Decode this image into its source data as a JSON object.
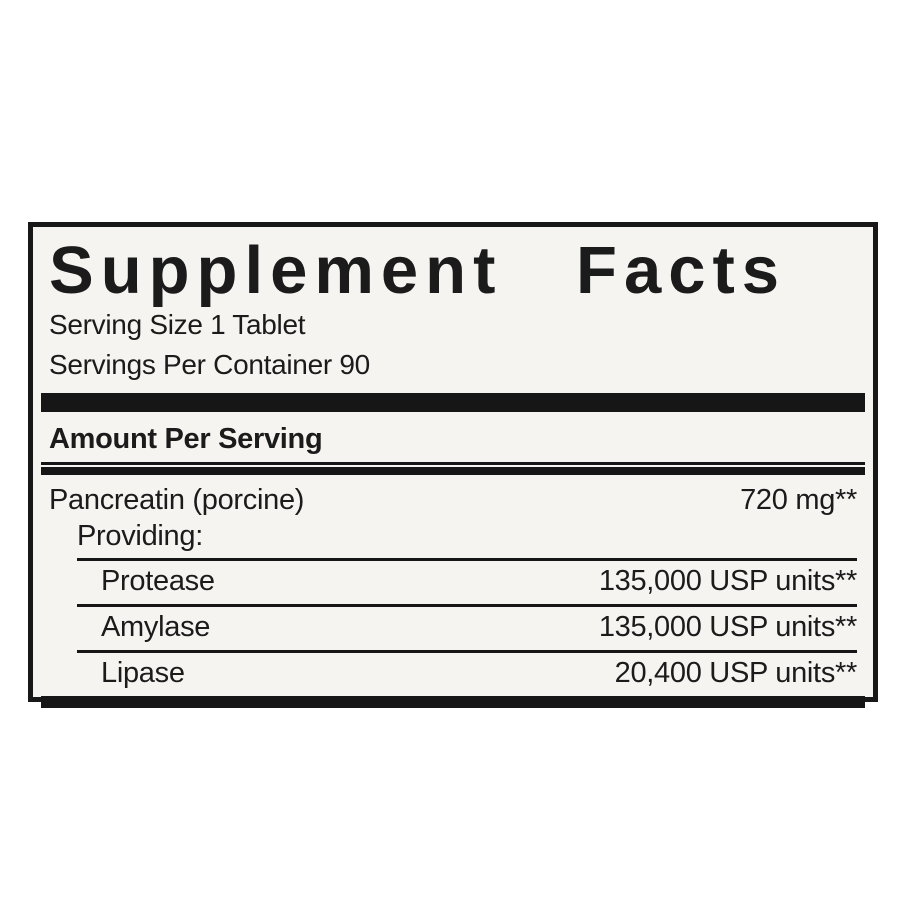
{
  "label": {
    "title": "Supplement Facts",
    "serving_size": "Serving Size 1 Tablet",
    "servings_per_container": "Servings Per Container 90",
    "amount_per_serving_header": "Amount Per Serving",
    "main_row": {
      "name": "Pancreatin (porcine)",
      "amount": "720 mg**"
    },
    "providing_label": "Providing:",
    "sub_rows": [
      {
        "name": "Protease",
        "amount": "135,000 USP units**"
      },
      {
        "name": "Amylase",
        "amount": "135,000 USP units**"
      },
      {
        "name": "Lipase",
        "amount": "20,400 USP units**"
      }
    ],
    "colors": {
      "border": "#181818",
      "bar": "#161616",
      "background_inside": "#f5f4f1",
      "background_page": "#ffffff",
      "text": "#1b1b1b"
    }
  }
}
